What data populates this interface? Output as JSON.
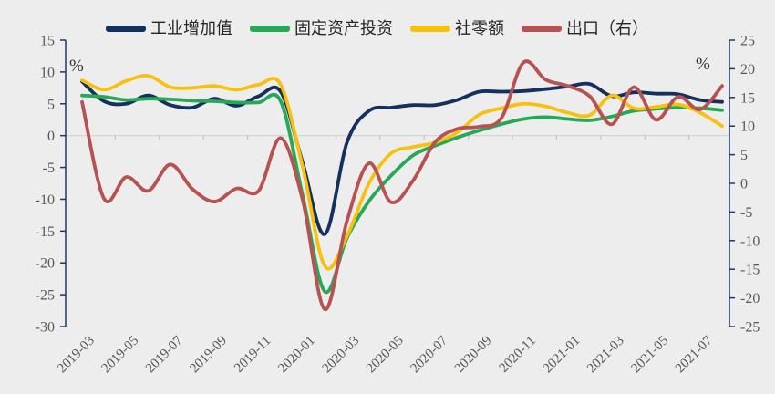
{
  "chart_data": {
    "type": "line",
    "title": "",
    "legend_position": "top",
    "grid": "zero-line-only",
    "x": [
      "2019-03",
      "2019-04",
      "2019-05",
      "2019-06",
      "2019-07",
      "2019-08",
      "2019-09",
      "2019-10",
      "2019-11",
      "2019-12",
      "2020-01",
      "2020-02",
      "2020-03",
      "2020-04",
      "2020-05",
      "2020-06",
      "2020-07",
      "2020-08",
      "2020-09",
      "2020-10",
      "2020-11",
      "2020-12",
      "2021-01",
      "2021-02",
      "2021-03",
      "2021-04",
      "2021-05",
      "2021-06",
      "2021-07",
      "2021-08"
    ],
    "x_tick_labels": [
      "2019-03",
      "2019-05",
      "2019-07",
      "2019-09",
      "2019-11",
      "2020-01",
      "2020-03",
      "2020-05",
      "2020-07",
      "2020-09",
      "2020-11",
      "2021-01",
      "2021-03",
      "2021-05",
      "2021-07"
    ],
    "left_axis": {
      "unit_label": "%",
      "min": -30,
      "max": 15,
      "tick_step": 5,
      "ticks": [
        15,
        10,
        5,
        0,
        -5,
        -10,
        -15,
        -20,
        -25,
        -30
      ]
    },
    "right_axis": {
      "unit_label": "%",
      "min": -25,
      "max": 25,
      "tick_step": 5,
      "ticks": [
        25,
        20,
        15,
        10,
        5,
        0,
        -5,
        -10,
        -15,
        -20,
        -25
      ]
    },
    "series": [
      {
        "key": "industrial",
        "name": "工业增加值",
        "axis": "left",
        "color": "#14305c",
        "values": [
          8.5,
          5.4,
          5.0,
          6.3,
          4.8,
          4.4,
          5.8,
          4.7,
          6.2,
          6.9,
          -4.3,
          -15.5,
          -1.1,
          3.9,
          4.4,
          4.8,
          4.8,
          5.6,
          6.9,
          6.9,
          7.0,
          7.3,
          7.7,
          8.1,
          6.2,
          6.8,
          6.6,
          6.5,
          5.6,
          5.3
        ]
      },
      {
        "key": "fai",
        "name": "固定资产投资",
        "axis": "left",
        "color": "#27a857",
        "values": [
          6.3,
          6.1,
          5.6,
          5.8,
          5.7,
          5.5,
          5.4,
          5.2,
          5.2,
          5.4,
          -9.5,
          -24.5,
          -16.1,
          -10.3,
          -6.3,
          -3.1,
          -1.6,
          -0.3,
          0.8,
          1.8,
          2.6,
          2.9,
          2.6,
          2.4,
          3.0,
          3.9,
          4.2,
          4.4,
          4.3,
          4.0
        ]
      },
      {
        "key": "retail",
        "name": "社零额",
        "axis": "left",
        "color": "#f7c112",
        "values": [
          8.7,
          7.2,
          8.6,
          9.4,
          7.6,
          7.5,
          7.8,
          7.2,
          8.0,
          8.0,
          -5.0,
          -20.5,
          -15.8,
          -7.5,
          -2.8,
          -1.8,
          -1.1,
          0.5,
          3.3,
          4.3,
          5.0,
          4.6,
          3.6,
          3.2,
          6.3,
          4.3,
          4.5,
          4.9,
          3.6,
          1.5
        ]
      },
      {
        "key": "exports",
        "name": "出口（右）",
        "axis": "right",
        "color": "#b65252",
        "values": [
          14.2,
          -2.7,
          1.1,
          -1.3,
          3.3,
          -1.0,
          -3.2,
          -0.9,
          -1.3,
          7.9,
          -3.0,
          -22.0,
          -6.6,
          3.5,
          -3.3,
          0.5,
          7.2,
          9.5,
          9.9,
          11.4,
          21.1,
          18.1,
          17.0,
          15.2,
          10.3,
          16.8,
          11.1,
          15.1,
          12.9,
          17.0
        ]
      }
    ]
  },
  "colors": {
    "background": "#ededed",
    "axis_line": "#1f3864",
    "tick_label": "#595959",
    "zero_line": "#d3d3d3",
    "category_tick": "#c3c3c3",
    "percent_label": "#333333"
  }
}
